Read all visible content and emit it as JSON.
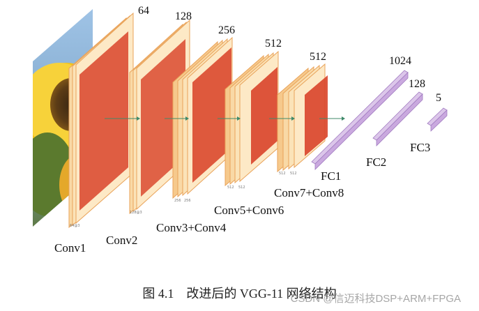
{
  "figure": {
    "caption": "图 4.1　改进后的 VGG-11 网络结构",
    "watermark": "CSDN @信迈科技DSP+ARM+FPGA"
  },
  "layers": {
    "conv1": {
      "label": "Conv1",
      "channels": "64",
      "dims": "64@3"
    },
    "conv2": {
      "label": "Conv2",
      "channels": "128",
      "dims": "128@3"
    },
    "conv34": {
      "label": "Conv3+Conv4",
      "channels": "256",
      "dims_a": "256",
      "dims_b": "256"
    },
    "conv56": {
      "label": "Conv5+Conv6",
      "channels": "512",
      "dims_a": "512",
      "dims_b": "512"
    },
    "conv78": {
      "label": "Conv7+Conv8",
      "channels": "512",
      "dims_a": "512",
      "dims_b": "512"
    },
    "fc1": {
      "label": "FC1",
      "units": "1024"
    },
    "fc2": {
      "label": "FC2",
      "units": "128"
    },
    "fc3": {
      "label": "FC3",
      "units": "5"
    }
  },
  "colors": {
    "block_fill": "#f9d9a6",
    "block_edge": "#e9a35a",
    "kernel_fill": "#d9442a",
    "fc_fill": "#dcc6ea",
    "arrow": "#3f8a6a"
  },
  "input_image": {
    "icon": "sunflower-image"
  }
}
